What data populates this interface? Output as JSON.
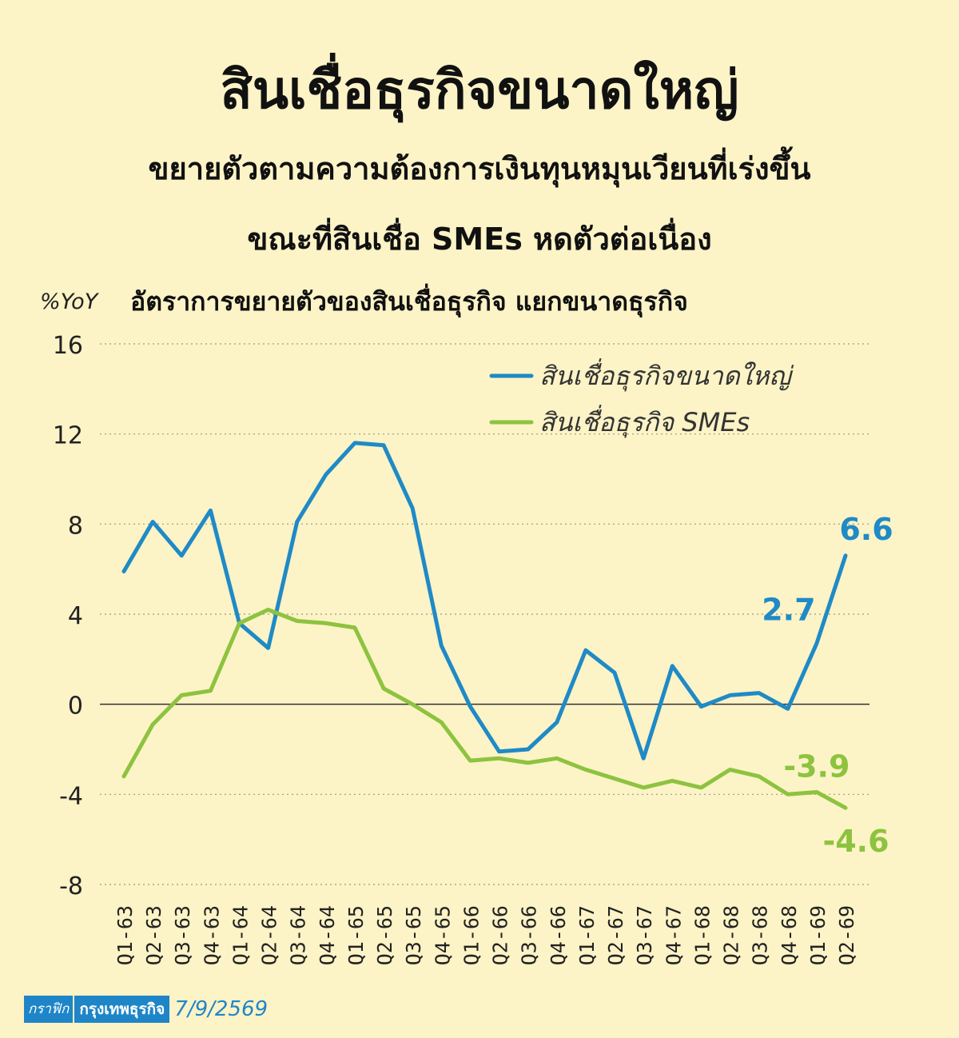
{
  "header": {
    "title": "สินเชื่อธุรกิจขนาดใหญ่",
    "subtitle_line1": "ขยายตัวตามความต้องการเงินทุนหมุนเวียนที่เร่งขึ้น",
    "subtitle_line2": "ขณะที่สินเชื่อ SMEs หดตัวต่อเนื่อง"
  },
  "chart_data": {
    "type": "line",
    "title": "อัตราการขยายตัวของสินเชื่อธุรกิจ แยกขนาดธุรกิจ",
    "ylabel": "%YoY",
    "xlabel": "",
    "ylim": [
      -8,
      16
    ],
    "yticks": [
      16,
      12,
      8,
      4,
      0,
      -4,
      -8
    ],
    "grid": true,
    "legend_position": "top-right",
    "categories": [
      "Q1-63",
      "Q2-63",
      "Q3-63",
      "Q4-63",
      "Q1-64",
      "Q2-64",
      "Q3-64",
      "Q4-64",
      "Q1-65",
      "Q2-65",
      "Q3-65",
      "Q4-65",
      "Q1-66",
      "Q2-66",
      "Q3-66",
      "Q4-66",
      "Q1-67",
      "Q2-67",
      "Q3-67",
      "Q4-67",
      "Q1-68",
      "Q2-68",
      "Q3-68",
      "Q4-68",
      "Q1-69",
      "Q2-69"
    ],
    "series": [
      {
        "name": "สินเชื่อธุรกิจขนาดใหญ่",
        "color": "#1f8ac6",
        "values": [
          5.9,
          8.1,
          6.6,
          8.6,
          3.6,
          2.5,
          8.1,
          10.2,
          11.6,
          11.5,
          8.7,
          2.6,
          -0.1,
          -2.1,
          -2.0,
          -0.8,
          2.4,
          1.4,
          -2.4,
          1.7,
          -0.1,
          0.4,
          0.5,
          -0.2,
          2.7,
          6.6
        ]
      },
      {
        "name": "สินเชื่อธุรกิจ SMEs",
        "color": "#8dc33f",
        "values": [
          -3.2,
          -0.9,
          0.4,
          0.6,
          3.6,
          4.2,
          3.7,
          3.6,
          3.4,
          0.7,
          0.0,
          -0.8,
          -2.5,
          -2.4,
          -2.6,
          -2.4,
          -2.9,
          -3.3,
          -3.7,
          -3.4,
          -3.7,
          -2.9,
          -3.2,
          -4.0,
          -3.9,
          -4.6
        ]
      }
    ],
    "annotations": [
      {
        "text": "6.6",
        "series": 0,
        "index": 25,
        "color": "#1f8ac6"
      },
      {
        "text": "2.7",
        "series": 0,
        "index": 24,
        "color": "#1f8ac6"
      },
      {
        "text": "-3.9",
        "series": 1,
        "index": 24,
        "color": "#8dc33f"
      },
      {
        "text": "-4.6",
        "series": 1,
        "index": 25,
        "color": "#8dc33f"
      }
    ]
  },
  "footer": {
    "label": "กราฟิก",
    "org": "กรุงเทพธุรกิจ",
    "date": "7/9/2569"
  }
}
